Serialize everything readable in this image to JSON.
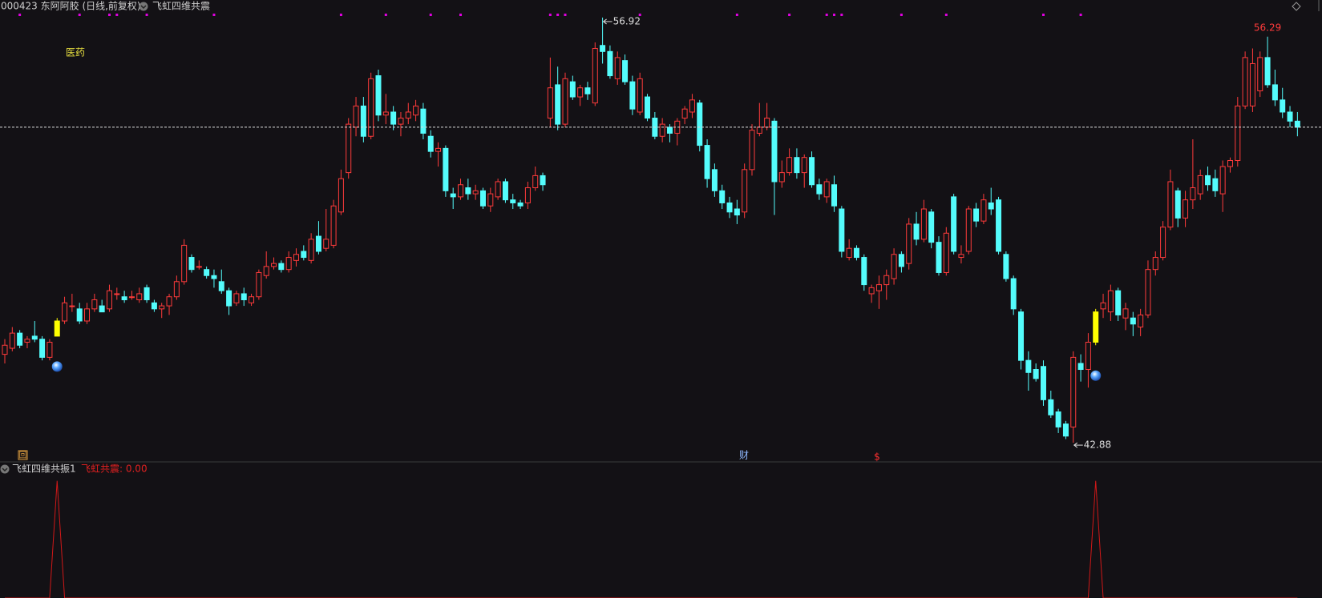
{
  "header": {
    "symbol": "000423 东阿阿胶 (日线,前复权)",
    "indicator": "飞虹四维共震"
  },
  "chart_data": [
    {
      "type": "candlestick",
      "sector_label": "医药",
      "ylim": [
        42.3,
        57.5
      ],
      "up_color": "#ff3b3b",
      "down_color": "#54fcfc",
      "signal_color": "#ffff00",
      "last_line": true,
      "candles": [
        [
          45.8,
          46.3,
          45.5,
          46.1
        ],
        [
          46.0,
          46.7,
          45.9,
          46.5
        ],
        [
          46.5,
          46.6,
          46.0,
          46.1
        ],
        [
          46.2,
          46.4,
          46.0,
          46.3
        ],
        [
          46.4,
          46.9,
          46.2,
          46.3
        ],
        [
          46.3,
          46.4,
          45.6,
          45.7
        ],
        [
          45.7,
          46.3,
          45.6,
          46.2
        ],
        [
          46.4,
          47.0,
          46.4,
          46.9
        ],
        [
          46.9,
          47.7,
          46.8,
          47.5
        ],
        [
          47.4,
          47.8,
          47.2,
          47.4
        ],
        [
          47.3,
          47.5,
          46.8,
          46.9
        ],
        [
          46.9,
          47.5,
          46.8,
          47.3
        ],
        [
          47.3,
          47.8,
          47.2,
          47.6
        ],
        [
          47.4,
          47.6,
          47.2,
          47.2
        ],
        [
          47.3,
          48.1,
          47.2,
          47.9
        ],
        [
          47.8,
          48.0,
          47.6,
          47.8
        ],
        [
          47.7,
          47.9,
          47.5,
          47.6
        ],
        [
          47.7,
          47.9,
          47.6,
          47.7
        ],
        [
          47.6,
          48.0,
          47.5,
          47.8
        ],
        [
          48.0,
          48.1,
          47.5,
          47.6
        ],
        [
          47.5,
          47.6,
          47.2,
          47.3
        ],
        [
          47.3,
          47.5,
          47.0,
          47.4
        ],
        [
          47.4,
          47.8,
          47.1,
          47.7
        ],
        [
          47.7,
          48.4,
          47.6,
          48.2
        ],
        [
          48.2,
          49.6,
          48.1,
          49.4
        ],
        [
          49.0,
          49.1,
          48.5,
          48.6
        ],
        [
          48.7,
          48.9,
          48.6,
          48.7
        ],
        [
          48.6,
          48.7,
          48.3,
          48.4
        ],
        [
          48.4,
          48.6,
          48.0,
          48.3
        ],
        [
          48.2,
          48.6,
          47.8,
          47.9
        ],
        [
          47.9,
          48.0,
          47.1,
          47.4
        ],
        [
          47.5,
          47.9,
          47.4,
          47.8
        ],
        [
          47.8,
          48.0,
          47.4,
          47.6
        ],
        [
          47.5,
          47.8,
          47.4,
          47.7
        ],
        [
          47.7,
          48.6,
          47.6,
          48.5
        ],
        [
          48.4,
          49.2,
          48.3,
          48.7
        ],
        [
          48.7,
          49.0,
          48.6,
          48.8
        ],
        [
          48.8,
          48.9,
          48.5,
          48.6
        ],
        [
          48.6,
          49.2,
          48.5,
          49.0
        ],
        [
          48.9,
          49.3,
          48.7,
          49.1
        ],
        [
          49.2,
          49.4,
          48.9,
          49.0
        ],
        [
          48.9,
          49.8,
          48.8,
          49.6
        ],
        [
          49.7,
          50.2,
          49.1,
          49.2
        ],
        [
          49.3,
          50.6,
          49.2,
          49.6
        ],
        [
          49.4,
          50.9,
          49.3,
          50.7
        ],
        [
          50.5,
          51.9,
          50.4,
          51.6
        ],
        [
          51.8,
          53.6,
          51.6,
          53.4
        ],
        [
          53.3,
          54.3,
          53.0,
          54.0
        ],
        [
          54.0,
          54.3,
          52.8,
          53.0
        ],
        [
          53.0,
          55.1,
          52.9,
          54.9
        ],
        [
          55.0,
          55.2,
          53.5,
          53.7
        ],
        [
          53.7,
          54.4,
          53.4,
          53.8
        ],
        [
          53.8,
          54.0,
          53.2,
          53.4
        ],
        [
          53.4,
          53.8,
          53.0,
          53.6
        ],
        [
          53.6,
          54.1,
          53.4,
          53.8
        ],
        [
          53.7,
          54.2,
          53.5,
          54.0
        ],
        [
          53.9,
          54.1,
          52.9,
          53.1
        ],
        [
          53.0,
          53.2,
          52.3,
          52.5
        ],
        [
          52.5,
          52.8,
          52.0,
          52.6
        ],
        [
          52.6,
          52.7,
          51.0,
          51.2
        ],
        [
          51.1,
          51.3,
          50.6,
          51.0
        ],
        [
          51.0,
          51.6,
          50.9,
          51.4
        ],
        [
          51.3,
          51.6,
          50.9,
          51.1
        ],
        [
          51.1,
          51.4,
          50.9,
          51.2
        ],
        [
          51.2,
          51.3,
          50.6,
          50.7
        ],
        [
          50.7,
          51.3,
          50.5,
          51.1
        ],
        [
          51.0,
          51.6,
          50.9,
          51.5
        ],
        [
          51.5,
          51.6,
          50.8,
          50.9
        ],
        [
          50.9,
          51.1,
          50.6,
          50.8
        ],
        [
          50.8,
          50.9,
          50.6,
          50.7
        ],
        [
          50.8,
          51.5,
          50.6,
          51.3
        ],
        [
          51.3,
          52.0,
          51.2,
          51.7
        ],
        [
          51.7,
          51.8,
          51.2,
          51.4
        ],
        [
          53.6,
          55.6,
          53.3,
          54.6
        ],
        [
          54.7,
          55.3,
          53.2,
          53.4
        ],
        [
          53.4,
          55.1,
          53.3,
          54.9
        ],
        [
          54.8,
          55.0,
          54.2,
          54.3
        ],
        [
          54.3,
          54.7,
          54.0,
          54.6
        ],
        [
          54.6,
          54.8,
          54.2,
          54.4
        ],
        [
          54.1,
          56.1,
          54.0,
          55.9
        ],
        [
          56.0,
          56.92,
          55.4,
          55.8
        ],
        [
          55.8,
          56.0,
          54.9,
          55.0
        ],
        [
          54.9,
          55.8,
          54.7,
          55.6
        ],
        [
          55.5,
          55.7,
          54.7,
          54.8
        ],
        [
          54.8,
          55.0,
          53.7,
          53.9
        ],
        [
          53.8,
          55.1,
          53.7,
          54.9
        ],
        [
          54.3,
          54.4,
          53.5,
          53.6
        ],
        [
          53.6,
          53.8,
          52.9,
          53.0
        ],
        [
          53.0,
          53.6,
          52.8,
          53.4
        ],
        [
          53.3,
          53.4,
          52.8,
          53.1
        ],
        [
          53.1,
          53.6,
          52.7,
          53.5
        ],
        [
          53.6,
          54.0,
          53.4,
          53.9
        ],
        [
          53.8,
          54.4,
          53.6,
          54.2
        ],
        [
          54.1,
          54.2,
          52.5,
          52.7
        ],
        [
          52.7,
          52.9,
          51.3,
          51.6
        ],
        [
          51.9,
          52.1,
          51.0,
          51.2
        ],
        [
          51.2,
          51.4,
          50.6,
          50.8
        ],
        [
          50.8,
          51.0,
          50.3,
          50.5
        ],
        [
          50.6,
          50.9,
          50.1,
          50.4
        ],
        [
          50.5,
          52.1,
          50.3,
          51.9
        ],
        [
          51.9,
          53.4,
          51.7,
          53.2
        ],
        [
          53.1,
          54.1,
          53.0,
          53.3
        ],
        [
          53.3,
          54.1,
          53.2,
          53.6
        ],
        [
          53.5,
          53.6,
          50.4,
          51.5
        ],
        [
          51.5,
          52.2,
          51.3,
          51.8
        ],
        [
          51.8,
          52.6,
          51.7,
          52.3
        ],
        [
          52.3,
          52.6,
          51.6,
          51.8
        ],
        [
          51.8,
          52.4,
          51.3,
          52.3
        ],
        [
          52.3,
          52.5,
          51.3,
          51.4
        ],
        [
          51.4,
          51.6,
          50.9,
          51.1
        ],
        [
          51.0,
          51.6,
          50.8,
          51.5
        ],
        [
          51.4,
          51.7,
          50.5,
          50.7
        ],
        [
          50.6,
          50.7,
          49.0,
          49.2
        ],
        [
          49.0,
          49.6,
          48.9,
          49.3
        ],
        [
          49.3,
          49.4,
          48.9,
          49.0
        ],
        [
          49.0,
          49.1,
          47.9,
          48.1
        ],
        [
          47.8,
          48.1,
          47.5,
          48.0
        ],
        [
          47.9,
          48.4,
          47.3,
          48.1
        ],
        [
          48.1,
          48.6,
          47.6,
          48.4
        ],
        [
          48.3,
          49.3,
          48.1,
          49.1
        ],
        [
          49.1,
          49.2,
          48.5,
          48.7
        ],
        [
          48.8,
          50.3,
          48.6,
          50.1
        ],
        [
          50.1,
          50.5,
          49.4,
          49.6
        ],
        [
          49.6,
          50.9,
          49.5,
          50.6
        ],
        [
          50.5,
          50.6,
          49.3,
          49.5
        ],
        [
          49.5,
          49.7,
          48.4,
          48.5
        ],
        [
          48.5,
          50.0,
          48.4,
          49.8
        ],
        [
          51.0,
          51.1,
          49.1,
          49.2
        ],
        [
          49.0,
          49.4,
          48.8,
          49.1
        ],
        [
          49.2,
          50.7,
          49.1,
          50.6
        ],
        [
          50.6,
          50.8,
          50.0,
          50.2
        ],
        [
          50.2,
          51.1,
          50.1,
          50.9
        ],
        [
          50.8,
          51.3,
          50.4,
          50.6
        ],
        [
          50.9,
          51.0,
          49.1,
          49.2
        ],
        [
          49.1,
          49.2,
          48.2,
          48.3
        ],
        [
          48.3,
          48.4,
          47.1,
          47.3
        ],
        [
          47.2,
          47.3,
          45.3,
          45.6
        ],
        [
          45.6,
          45.9,
          44.6,
          45.2
        ],
        [
          45.3,
          45.5,
          44.9,
          45.0
        ],
        [
          45.4,
          45.6,
          44.1,
          44.3
        ],
        [
          44.3,
          44.6,
          43.7,
          43.8
        ],
        [
          43.9,
          44.0,
          43.2,
          43.4
        ],
        [
          43.5,
          43.6,
          43.0,
          43.1
        ],
        [
          43.4,
          45.9,
          42.88,
          45.7
        ],
        [
          45.5,
          45.8,
          44.9,
          45.3
        ],
        [
          45.3,
          46.5,
          44.7,
          46.2
        ],
        [
          46.2,
          47.3,
          46.1,
          47.2
        ],
        [
          47.3,
          47.8,
          47.0,
          47.5
        ],
        [
          47.2,
          48.1,
          46.9,
          47.9
        ],
        [
          47.9,
          48.0,
          46.9,
          47.1
        ],
        [
          47.0,
          47.5,
          46.6,
          47.3
        ],
        [
          47.0,
          47.2,
          46.4,
          46.8
        ],
        [
          46.7,
          47.3,
          46.4,
          47.1
        ],
        [
          47.1,
          48.9,
          47.0,
          48.6
        ],
        [
          48.6,
          49.2,
          48.4,
          49.0
        ],
        [
          49.0,
          50.2,
          48.9,
          50.0
        ],
        [
          50.0,
          51.9,
          49.9,
          51.5
        ],
        [
          51.2,
          51.3,
          50.0,
          50.3
        ],
        [
          50.3,
          51.2,
          50.0,
          50.9
        ],
        [
          50.9,
          52.9,
          50.6,
          51.3
        ],
        [
          51.1,
          51.9,
          50.9,
          51.7
        ],
        [
          51.7,
          52.0,
          51.2,
          51.4
        ],
        [
          51.6,
          51.9,
          51.0,
          51.2
        ],
        [
          51.1,
          52.2,
          50.5,
          52.0
        ],
        [
          52.0,
          52.3,
          51.8,
          52.2
        ],
        [
          52.2,
          54.3,
          52.0,
          54.0
        ],
        [
          54.0,
          55.8,
          53.9,
          55.6
        ],
        [
          54.0,
          55.9,
          53.8,
          55.4
        ],
        [
          54.5,
          55.8,
          54.3,
          55.6
        ],
        [
          55.6,
          56.29,
          54.6,
          54.7
        ],
        [
          54.7,
          55.2,
          54.0,
          54.2
        ],
        [
          54.2,
          54.6,
          53.6,
          53.8
        ],
        [
          53.8,
          54.0,
          53.3,
          53.5
        ],
        [
          53.5,
          53.8,
          53.0,
          53.3
        ]
      ],
      "annotations": [
        {
          "x": 80,
          "value": 56.92,
          "style": "arrow"
        },
        {
          "x": 143,
          "value": 42.88,
          "style": "arrow"
        },
        {
          "x": 169,
          "value": 56.29,
          "style": "plain",
          "color": "#ff3b3b"
        }
      ],
      "top_markers": {
        "color": "#e000e0",
        "x": [
          2,
          10,
          14,
          15,
          19,
          28,
          45,
          51,
          57,
          61,
          73,
          74,
          75,
          85,
          98,
          105,
          110,
          111,
          112,
          120,
          126,
          139,
          144
        ]
      },
      "event_icons": [
        "回",
        "财",
        "$"
      ]
    },
    {
      "type": "line",
      "title": "飞虹四维共振1",
      "legend_label": "飞虹共震: 0.00",
      "color": "#d01818",
      "ylim": [
        0,
        1.1
      ],
      "values": [
        0,
        0,
        0,
        0,
        0,
        0,
        0,
        1,
        0,
        0,
        0,
        0,
        0,
        0,
        0,
        0,
        0,
        0,
        0,
        0,
        0,
        0,
        0,
        0,
        0,
        0,
        0,
        0,
        0,
        0,
        0,
        0,
        0,
        0,
        0,
        0,
        0,
        0,
        0,
        0,
        0,
        0,
        0,
        0,
        0,
        0,
        0,
        0,
        0,
        0,
        0,
        0,
        0,
        0,
        0,
        0,
        0,
        0,
        0,
        0,
        0,
        0,
        0,
        0,
        0,
        0,
        0,
        0,
        0,
        0,
        0,
        0,
        0,
        0,
        0,
        0,
        0,
        0,
        0,
        0,
        0,
        0,
        0,
        0,
        0,
        0,
        0,
        0,
        0,
        0,
        0,
        0,
        0,
        0,
        0,
        0,
        0,
        0,
        0,
        0,
        0,
        0,
        0,
        0,
        0,
        0,
        0,
        0,
        0,
        0,
        0,
        0,
        0,
        0,
        0,
        0,
        0,
        0,
        0,
        0,
        0,
        0,
        0,
        0,
        0,
        0,
        0,
        0,
        0,
        0,
        0,
        0,
        0,
        0,
        0,
        0,
        0,
        0,
        0,
        0,
        0,
        0,
        0,
        0,
        0,
        0,
        1,
        0,
        0,
        0,
        0,
        0,
        0,
        0,
        0,
        0,
        0,
        0,
        0,
        0,
        0,
        0,
        0,
        0,
        0,
        0,
        0,
        0,
        0,
        0,
        0,
        0,
        0,
        0
      ]
    }
  ]
}
